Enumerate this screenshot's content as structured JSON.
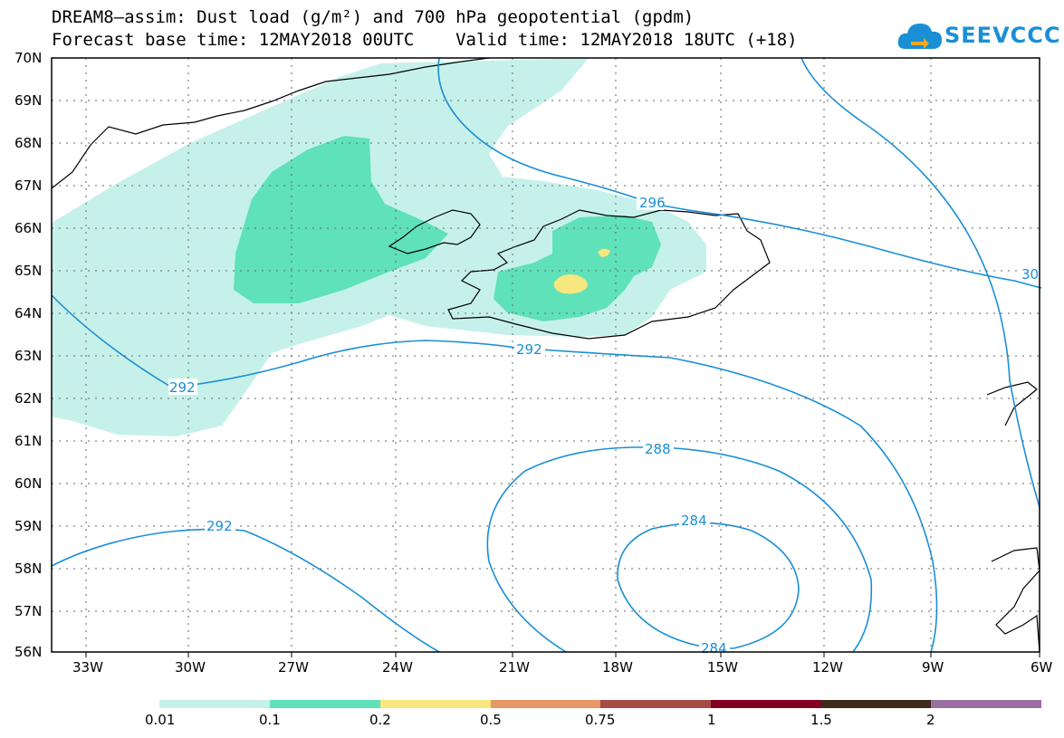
{
  "title_line1": "DREAM8–assim: Dust load (g/m²) and 700 hPa geopotential (gpdm)",
  "title_line2": "Forecast base time: 12MAY2018 00UTC    Valid time: 12MAY2018 18UTC (+18)",
  "logo_text": "SEEVCCC",
  "lon_labels": [
    "33W",
    "30W",
    "27W",
    "24W",
    "21W",
    "18W",
    "15W",
    "12W",
    "9W",
    "6W"
  ],
  "lat_labels": [
    "70N",
    "69N",
    "68N",
    "67N",
    "66N",
    "65N",
    "64N",
    "63N",
    "62N",
    "61N",
    "60N",
    "59N",
    "58N",
    "57N",
    "56N"
  ],
  "contour_labels": [
    "296",
    "30",
    "292",
    "292",
    "288",
    "284",
    "292",
    "284"
  ],
  "colorbar": {
    "levels": [
      "0.01",
      "0.1",
      "0.2",
      "0.5",
      "0.75",
      "1",
      "1.5",
      "2"
    ],
    "colors": [
      "#c6f1ea",
      "#5fe1b9",
      "#f6e77f",
      "#e59767",
      "#a64a45",
      "#820021",
      "#3d2a1a",
      "#996ea1"
    ]
  },
  "dust_colors": {
    "low": "#c6f1ea",
    "mid": "#5fe1b9",
    "high": "#f6e77f"
  },
  "contour_color": "#1a8fd6"
}
